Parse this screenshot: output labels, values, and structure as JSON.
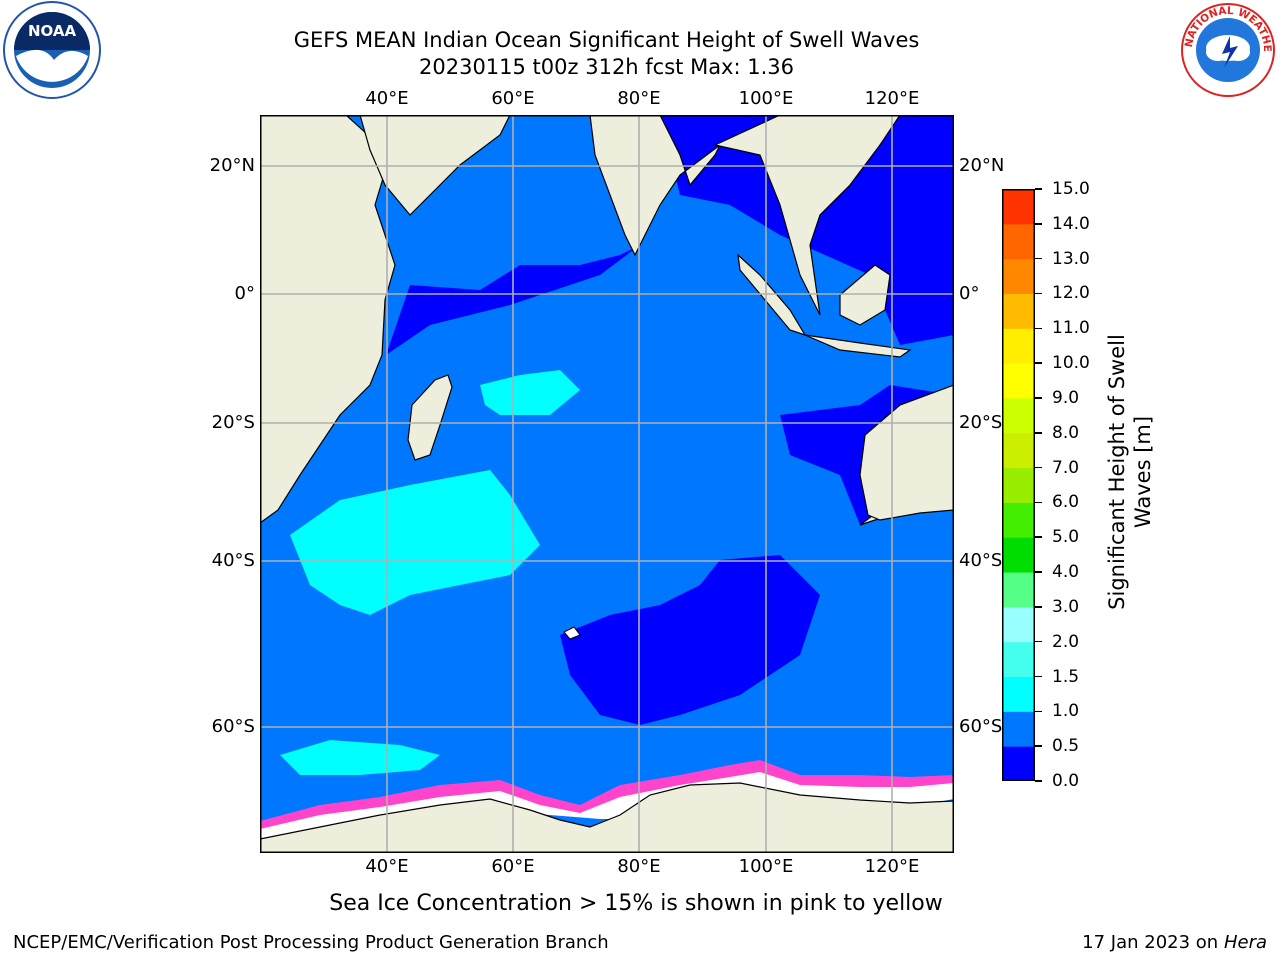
{
  "header": {
    "title_line1": "GEFS MEAN Indian Ocean Significant Height of Swell Waves",
    "title_line2": "20230115 t00z 312h fcst   Max: 1.36"
  },
  "map": {
    "lon_labels": [
      "40°E",
      "60°E",
      "80°E",
      "100°E",
      "120°E"
    ],
    "lat_labels": [
      "20°N",
      "0°",
      "20°S",
      "40°S",
      "60°S"
    ],
    "colors": {
      "land": "#eeeedd",
      "ocean_0_05": "#0000ff",
      "ocean_05_1": "#0077ff",
      "ocean_1_15": "#00ffff",
      "ice_white": "#ffffff",
      "ice_pink": "#ff44cc",
      "grid": "#b0b0b0"
    }
  },
  "colorbar": {
    "title_line1": "Significant Height of Swell",
    "title_line2": "Waves [m]",
    "tick_labels": [
      "0.0",
      "0.5",
      "1.0",
      "1.5",
      "2.0",
      "3.0",
      "4.0",
      "5.0",
      "6.0",
      "7.0",
      "8.0",
      "9.0",
      "10.0",
      "11.0",
      "12.0",
      "13.0",
      "14.0",
      "15.0"
    ],
    "segment_colors": [
      "#0000ff",
      "#0077ff",
      "#00ffff",
      "#44ffee",
      "#99ffff",
      "#55ff88",
      "#00dd00",
      "#44ee00",
      "#99ee00",
      "#ccee00",
      "#ccff00",
      "#ffff00",
      "#ffee00",
      "#ffbb00",
      "#ff8800",
      "#ff6600",
      "#ff3300"
    ]
  },
  "note": "Sea Ice Concentration > 15% is shown in pink to yellow",
  "footer": {
    "left": "NCEP/EMC/Verification Post Processing Product Generation Branch",
    "right_prefix": "17 Jan 2023 on ",
    "right_system": "Hera"
  },
  "logos": {
    "noaa_text": "NOAA",
    "nws_text": "NATIONAL WEATHER SERVICE"
  }
}
